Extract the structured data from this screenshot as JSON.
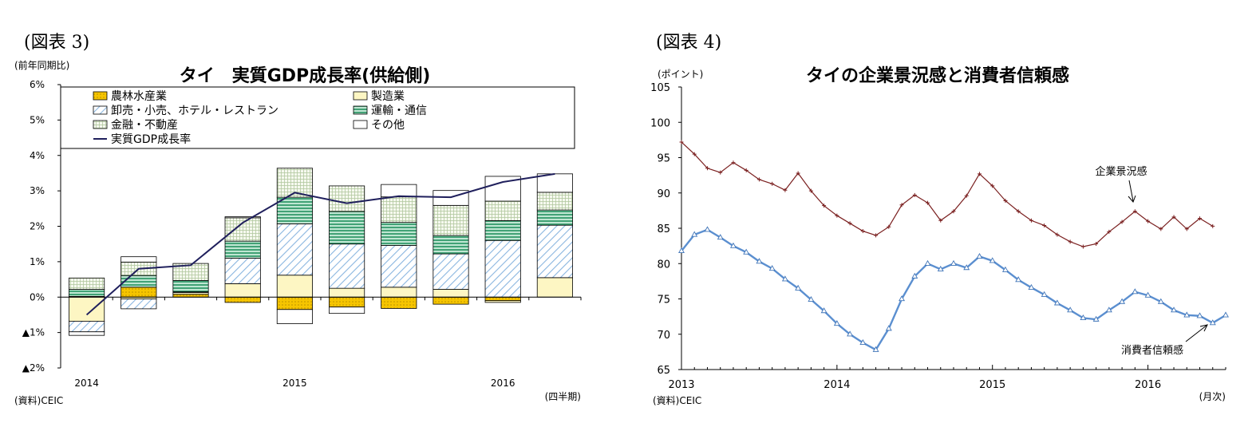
{
  "colors": {
    "agriculture": "#f2c200",
    "manufacturing": "#fdf6c3",
    "trade": "#9cc2e5",
    "transport": "#3aa77a",
    "finance": "#dde8cc",
    "other": "#ffffff",
    "gdp_line": "#1f1f5c",
    "business_line": "#7a1f1f",
    "consumer_line": "#5b8fd0"
  },
  "left": {
    "figure_label": "(図表 3)",
    "title": "タイ　実質GDP成長率(供給側)",
    "unit_label": "(前年同期比)",
    "source": "(資料)CEIC",
    "period_label": "(四半期)"
  },
  "right": {
    "figure_label": "(図表 4)",
    "title": "タイの企業景況感と消費者信頼感",
    "unit_label": "(ポイント)",
    "source": "(資料)CEIC",
    "period_label": "(月次)"
  },
  "chart_data": [
    {
      "type": "bar",
      "stacked": true,
      "title": "タイ　実質GDP成長率(供給側)",
      "ylabel": "(前年同期比)",
      "xlabel": "(四半期)",
      "ylim": [
        -2,
        6
      ],
      "ytick_values": [
        -2,
        -1,
        0,
        1,
        2,
        3,
        4,
        5,
        6
      ],
      "ytick_labels": [
        "▲2%",
        "▲1%",
        "0%",
        "1%",
        "2%",
        "3%",
        "4%",
        "5%",
        "6%"
      ],
      "categories": [
        "2014Q1",
        "2014Q2",
        "2014Q3",
        "2014Q4",
        "2015Q1",
        "2015Q2",
        "2015Q3",
        "2015Q4",
        "2016Q1",
        "2016Q2"
      ],
      "year_labels": [
        {
          "index": 0,
          "label": "2014"
        },
        {
          "index": 4,
          "label": "2015"
        },
        {
          "index": 8,
          "label": "2016"
        }
      ],
      "legend_placement": "top",
      "series": [
        {
          "key": "agriculture",
          "name": "農林水産業",
          "values": [
            0.02,
            0.28,
            0.08,
            -0.15,
            -0.35,
            -0.28,
            -0.32,
            -0.2,
            -0.1,
            0.0
          ]
        },
        {
          "key": "manufacturing",
          "name": "製造業",
          "values": [
            -0.68,
            -0.05,
            0.05,
            0.38,
            0.62,
            0.25,
            0.28,
            0.22,
            -0.05,
            0.55
          ]
        },
        {
          "key": "trade",
          "name": "卸売・小売、ホテル・レストラン",
          "values": [
            -0.3,
            -0.28,
            0.02,
            0.72,
            1.45,
            1.25,
            1.18,
            1.0,
            1.6,
            1.48
          ]
        },
        {
          "key": "transport",
          "name": "運輸・通信",
          "values": [
            0.2,
            0.33,
            0.32,
            0.48,
            0.75,
            0.92,
            0.65,
            0.52,
            0.56,
            0.43
          ]
        },
        {
          "key": "finance",
          "name": "金融・不動産",
          "values": [
            0.32,
            0.38,
            0.48,
            0.66,
            0.82,
            0.72,
            0.72,
            0.85,
            0.55,
            0.5
          ]
        },
        {
          "key": "other",
          "name": "その他",
          "values": [
            -0.1,
            0.15,
            0.0,
            0.03,
            -0.4,
            -0.18,
            0.35,
            0.42,
            0.7,
            0.52
          ]
        }
      ],
      "line": {
        "name": "実質GDP成長率",
        "values": [
          -0.5,
          0.8,
          0.9,
          2.1,
          2.95,
          2.65,
          2.85,
          2.82,
          3.25,
          3.48
        ]
      }
    },
    {
      "type": "line",
      "title": "タイの企業景況感と消費者信頼感",
      "ylabel": "(ポイント)",
      "xlabel": "(月次)",
      "ylim": [
        65,
        105
      ],
      "ytick_values": [
        65,
        70,
        75,
        80,
        85,
        90,
        95,
        100,
        105
      ],
      "x_start": "2013-01",
      "year_labels": [
        {
          "index": 0,
          "label": "2013"
        },
        {
          "index": 12,
          "label": "2014"
        },
        {
          "index": 24,
          "label": "2015"
        },
        {
          "index": 36,
          "label": "2016"
        }
      ],
      "series": [
        {
          "key": "business",
          "name": "企業景況感",
          "values": [
            97.2,
            95.5,
            93.5,
            92.9,
            94.3,
            93.2,
            91.9,
            91.3,
            90.4,
            92.8,
            90.3,
            88.2,
            86.8,
            85.7,
            84.6,
            84.0,
            85.2,
            88.3,
            89.7,
            88.6,
            86.1,
            87.4,
            89.6,
            92.7,
            91.0,
            88.9,
            87.4,
            86.1,
            85.4,
            84.1,
            83.1,
            82.4,
            82.8,
            84.5,
            85.9,
            87.4,
            86.0,
            84.9,
            86.6,
            84.9,
            86.4,
            85.3
          ]
        },
        {
          "key": "consumer",
          "name": "消費者信頼感",
          "values": [
            81.8,
            84.1,
            84.8,
            83.7,
            82.5,
            81.6,
            80.3,
            79.3,
            77.8,
            76.5,
            74.9,
            73.3,
            71.5,
            70.0,
            68.8,
            67.8,
            70.8,
            75.0,
            78.2,
            80.0,
            79.2,
            80.0,
            79.4,
            81.0,
            80.4,
            79.1,
            77.7,
            76.6,
            75.6,
            74.4,
            73.4,
            72.3,
            72.1,
            73.4,
            74.6,
            76.0,
            75.5,
            74.6,
            73.4,
            72.7,
            72.6,
            71.6,
            72.7
          ]
        }
      ],
      "annotations": [
        {
          "text": "企業景況感",
          "target_series": "business",
          "target_index": 35
        },
        {
          "text": "消費者信頼感",
          "target_series": "consumer",
          "target_index": 41
        }
      ]
    }
  ]
}
